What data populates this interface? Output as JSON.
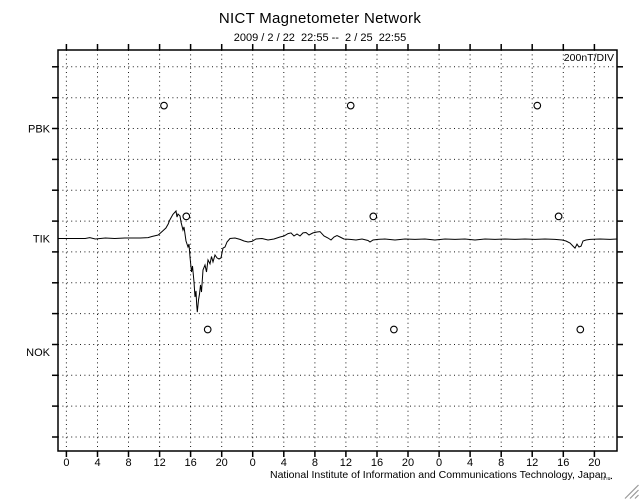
{
  "header": {
    "title": "NICT Magnetometer Network",
    "subtitle": "2009 / 2 / 22  22:55 --  2 / 25  22:55"
  },
  "plot": {
    "scale_label": "200nT/DIV"
  },
  "footer": {
    "institute": "National Institute of Information and Communications Technology, Japan",
    "micro_marks": "ııl ıu▪"
  },
  "colors": {
    "line": "#000000",
    "grid_dots": "#1a1a1a",
    "background": "#ffffff",
    "resize_grip": "#9a9a9a"
  },
  "chart_data": {
    "type": "line",
    "title": "NICT Magnetometer Network",
    "time_range": {
      "start": "2009/2/22 22:55",
      "end": "2009/2/25 22:55",
      "total_hours": 72
    },
    "y_scale_label": "200nT/DIV",
    "x_ticks": {
      "hours": [
        0,
        4,
        8,
        12,
        16,
        20
      ],
      "labels": [
        "0",
        "4",
        "8",
        "12",
        "16",
        "20"
      ]
    },
    "num_days": 3,
    "first_midnight_offset_hours": 1.083,
    "grid": {
      "y_top_line_nT": 1113,
      "y_step_nT": 200,
      "y_num_lines": 13
    },
    "ylim_nT": [
      -1378,
      1222
    ],
    "stations": [
      {
        "name": "PBK",
        "baseline_offset_nT": 712
      },
      {
        "name": "TIK",
        "baseline_offset_nT": 0
      },
      {
        "name": "NOK",
        "baseline_offset_nT": -736
      }
    ],
    "markers": [
      {
        "station": "PBK",
        "rel_nT": 150,
        "hours": [
          13.65,
          37.7,
          61.74
        ]
      },
      {
        "station": "TIK",
        "rel_nT": 143,
        "hours": [
          16.52,
          40.61,
          64.48
        ]
      },
      {
        "station": "NOK",
        "rel_nT": 146,
        "hours": [
          19.28,
          43.27,
          67.27
        ]
      }
    ],
    "series": [
      {
        "name": "TIK",
        "points": [
          [
            0,
            0
          ],
          [
            3.5,
            0
          ],
          [
            4.1,
            6
          ],
          [
            4.8,
            -3
          ],
          [
            6.1,
            3
          ],
          [
            7.3,
            0
          ],
          [
            8.6,
            3
          ],
          [
            10.6,
            3
          ],
          [
            11.6,
            6
          ],
          [
            12.1,
            13
          ],
          [
            12.9,
            23
          ],
          [
            13.5,
            49
          ],
          [
            13.9,
            68
          ],
          [
            14.2,
            94
          ],
          [
            14.4,
            120
          ],
          [
            14.8,
            156
          ],
          [
            15.2,
            178
          ],
          [
            15.33,
            139
          ],
          [
            15.46,
            159
          ],
          [
            15.71,
            146
          ],
          [
            15.84,
            107
          ],
          [
            16.1,
            55
          ],
          [
            16.23,
            75
          ],
          [
            16.49,
            -16
          ],
          [
            16.74,
            -55
          ],
          [
            16.87,
            -36
          ],
          [
            17.0,
            -120
          ],
          [
            17.19,
            -217
          ],
          [
            17.32,
            -178
          ],
          [
            17.52,
            -282
          ],
          [
            17.65,
            -379
          ],
          [
            17.77,
            -340
          ],
          [
            17.86,
            -431
          ],
          [
            17.94,
            -477
          ],
          [
            18.1,
            -399
          ],
          [
            18.22,
            -360
          ],
          [
            18.35,
            -301
          ],
          [
            18.48,
            -347
          ],
          [
            18.68,
            -204
          ],
          [
            18.93,
            -172
          ],
          [
            19.13,
            -217
          ],
          [
            19.32,
            -139
          ],
          [
            19.58,
            -165
          ],
          [
            19.77,
            -117
          ],
          [
            19.96,
            -152
          ],
          [
            20.22,
            -107
          ],
          [
            20.48,
            -126
          ],
          [
            20.74,
            -133
          ],
          [
            21.0,
            -126
          ],
          [
            21.25,
            -62
          ],
          [
            21.51,
            -55
          ],
          [
            21.77,
            -23
          ],
          [
            22.15,
            0
          ],
          [
            22.8,
            3
          ],
          [
            23.44,
            -6
          ],
          [
            23.96,
            -16
          ],
          [
            24.47,
            -23
          ],
          [
            24.99,
            -19
          ],
          [
            25.5,
            -3
          ],
          [
            26.27,
            0
          ],
          [
            27.05,
            -10
          ],
          [
            27.82,
            -3
          ],
          [
            28.59,
            10
          ],
          [
            29.11,
            16
          ],
          [
            29.62,
            32
          ],
          [
            30.01,
            36
          ],
          [
            30.4,
            16
          ],
          [
            30.78,
            29
          ],
          [
            31.17,
            16
          ],
          [
            31.56,
            36
          ],
          [
            31.94,
            39
          ],
          [
            32.33,
            23
          ],
          [
            32.84,
            36
          ],
          [
            33.36,
            42
          ],
          [
            33.74,
            45
          ],
          [
            34.26,
            16
          ],
          [
            34.77,
            3
          ],
          [
            35.16,
            -10
          ],
          [
            35.55,
            10
          ],
          [
            35.93,
            19
          ],
          [
            36.32,
            10
          ],
          [
            36.83,
            -3
          ],
          [
            37.61,
            -6
          ],
          [
            38.38,
            -10
          ],
          [
            39.15,
            -3
          ],
          [
            39.93,
            -13
          ],
          [
            40.18,
            -23
          ],
          [
            40.57,
            -10
          ],
          [
            41.21,
            -6
          ],
          [
            42.11,
            -3
          ],
          [
            43.4,
            -10
          ],
          [
            44.69,
            -3
          ],
          [
            45.98,
            -6
          ],
          [
            47.27,
            -3
          ],
          [
            48.55,
            -10
          ],
          [
            49.84,
            -3
          ],
          [
            51.13,
            -6
          ],
          [
            52.42,
            -3
          ],
          [
            53.71,
            -10
          ],
          [
            55.0,
            -3
          ],
          [
            56.28,
            -6
          ],
          [
            57.57,
            -3
          ],
          [
            58.86,
            -6
          ],
          [
            60.15,
            -3
          ],
          [
            61.44,
            -6
          ],
          [
            62.73,
            -3
          ],
          [
            64.01,
            -6
          ],
          [
            64.92,
            -10
          ],
          [
            65.43,
            -16
          ],
          [
            65.95,
            -29
          ],
          [
            66.33,
            -49
          ],
          [
            66.59,
            -62
          ],
          [
            66.85,
            -36
          ],
          [
            67.11,
            -55
          ],
          [
            67.37,
            -49
          ],
          [
            67.62,
            -16
          ],
          [
            68.01,
            -10
          ],
          [
            68.53,
            -6
          ],
          [
            69.81,
            -3
          ],
          [
            71.1,
            -6
          ],
          [
            72,
            -3
          ]
        ]
      }
    ]
  }
}
